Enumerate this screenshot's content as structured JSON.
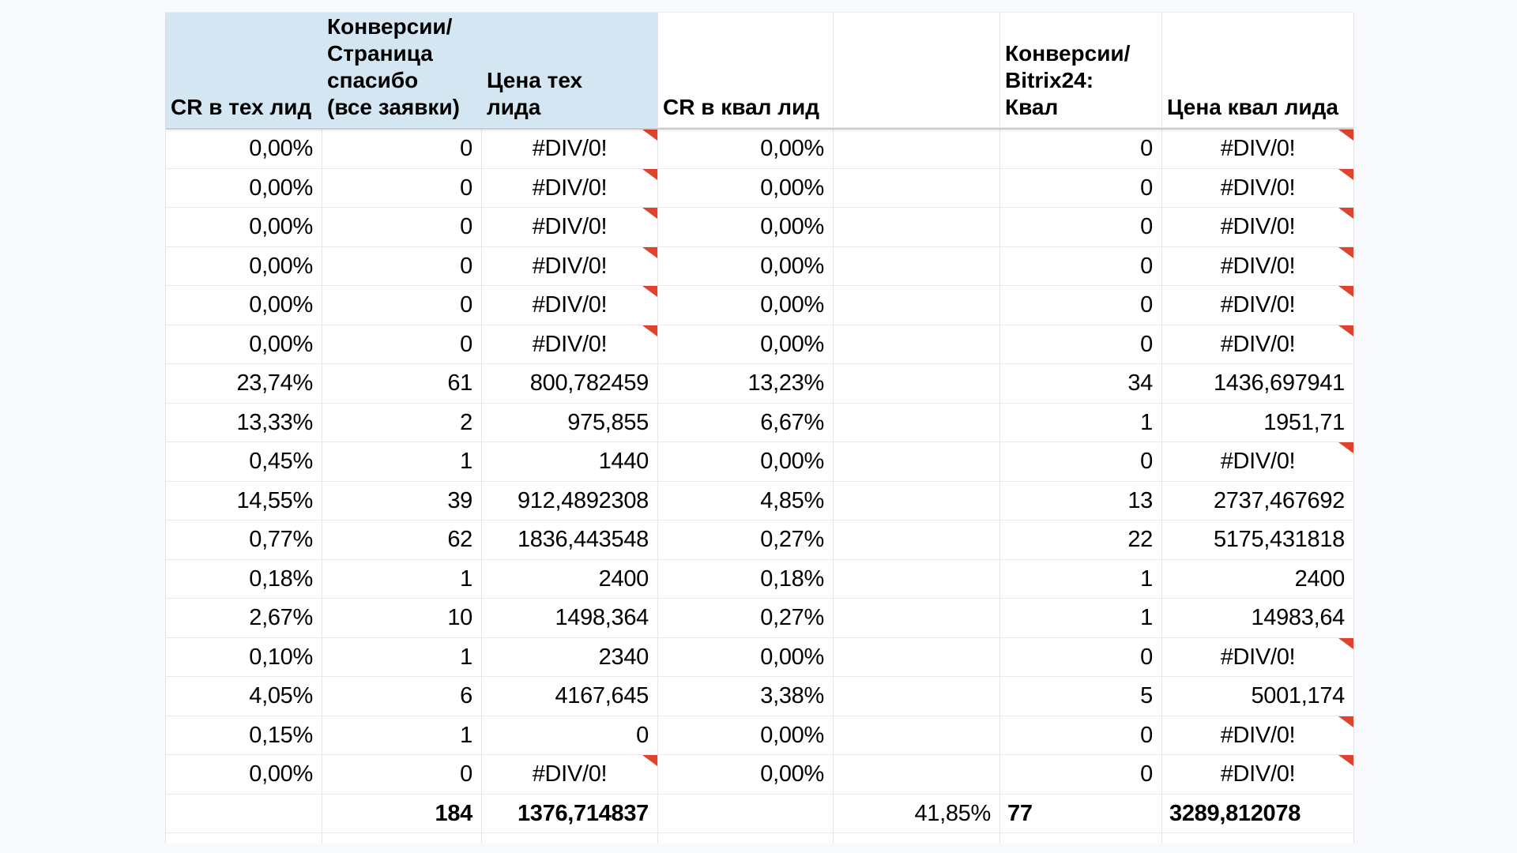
{
  "sheet": {
    "error_value": "#DIV/0!",
    "columns": [
      {
        "label": "CR в тех лид",
        "highlight": true
      },
      {
        "label": "Конверсии/\nСтраница\nспасибо\n(все заявки)",
        "highlight": true
      },
      {
        "label": "Цена тех\nлида",
        "highlight": true
      },
      {
        "label": "CR в квал лид",
        "highlight": false
      },
      {
        "label": "",
        "highlight": false
      },
      {
        "label": "Конверсии/\nBitrix24:\nКвал",
        "highlight": false
      },
      {
        "label": "Цена квал лида",
        "highlight": false
      }
    ],
    "rows": [
      [
        "0,00%",
        "0",
        "#DIV/0!",
        "0,00%",
        "",
        "0",
        "#DIV/0!"
      ],
      [
        "0,00%",
        "0",
        "#DIV/0!",
        "0,00%",
        "",
        "0",
        "#DIV/0!"
      ],
      [
        "0,00%",
        "0",
        "#DIV/0!",
        "0,00%",
        "",
        "0",
        "#DIV/0!"
      ],
      [
        "0,00%",
        "0",
        "#DIV/0!",
        "0,00%",
        "",
        "0",
        "#DIV/0!"
      ],
      [
        "0,00%",
        "0",
        "#DIV/0!",
        "0,00%",
        "",
        "0",
        "#DIV/0!"
      ],
      [
        "0,00%",
        "0",
        "#DIV/0!",
        "0,00%",
        "",
        "0",
        "#DIV/0!"
      ],
      [
        "23,74%",
        "61",
        "800,782459",
        "13,23%",
        "",
        "34",
        "1436,697941"
      ],
      [
        "13,33%",
        "2",
        "975,855",
        "6,67%",
        "",
        "1",
        "1951,71"
      ],
      [
        "0,45%",
        "1",
        "1440",
        "0,00%",
        "",
        "0",
        "#DIV/0!"
      ],
      [
        "14,55%",
        "39",
        "912,4892308",
        "4,85%",
        "",
        "13",
        "2737,467692"
      ],
      [
        "0,77%",
        "62",
        "1836,443548",
        "0,27%",
        "",
        "22",
        "5175,431818"
      ],
      [
        "0,18%",
        "1",
        "2400",
        "0,18%",
        "",
        "1",
        "2400"
      ],
      [
        "2,67%",
        "10",
        "1498,364",
        "0,27%",
        "",
        "1",
        "14983,64"
      ],
      [
        "0,10%",
        "1",
        "2340",
        "0,00%",
        "",
        "0",
        "#DIV/0!"
      ],
      [
        "4,05%",
        "6",
        "4167,645",
        "3,38%",
        "",
        "5",
        "5001,174"
      ],
      [
        "0,15%",
        "1",
        "0",
        "0,00%",
        "",
        "0",
        "#DIV/0!"
      ],
      [
        "0,00%",
        "0",
        "#DIV/0!",
        "0,00%",
        "",
        "0",
        "#DIV/0!"
      ]
    ],
    "total_row": [
      "",
      "184",
      "1376,714837",
      "",
      "41,85%",
      "77",
      "3289,812078"
    ],
    "colors": {
      "header_highlight": "#d3e6f1",
      "error_marker": "#e0432d",
      "background": "#f8fafd",
      "gridline": "#e2e4e7"
    }
  }
}
